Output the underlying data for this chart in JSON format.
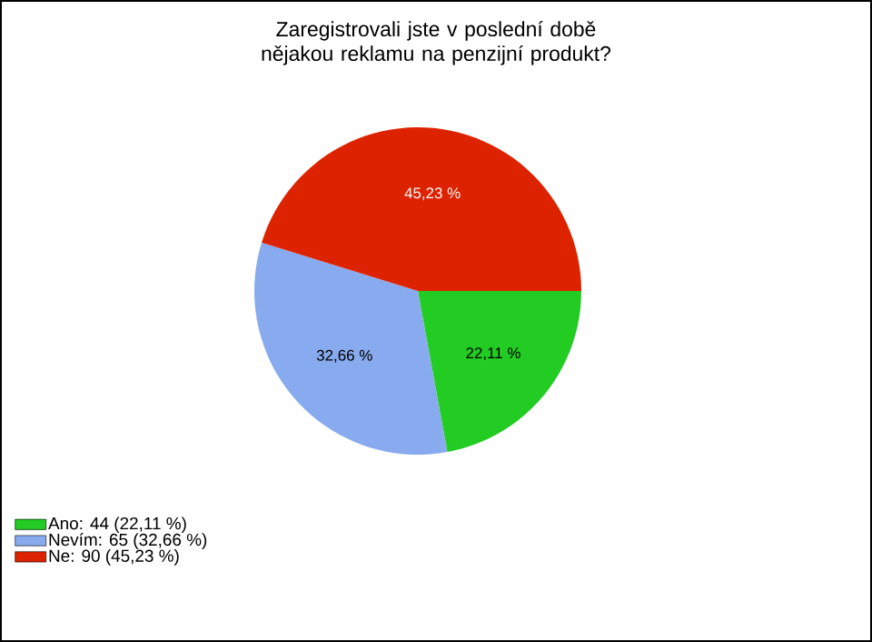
{
  "chart_data": {
    "type": "pie",
    "title": "Zaregistrovali jste v poslední době nějakou reklamu na penzijní produkt?",
    "categories": [
      "Ano: 44 (22,11 %)",
      "Nevím: 65 (32,66 %)",
      "Ne: 90 (45,23 %)"
    ],
    "values": [
      22.11,
      32.66,
      45.23
    ],
    "value_labels": [
      "22,11 %",
      "32,66 %",
      "45,23 %"
    ],
    "colors": [
      "#22cc22",
      "#88aaee",
      "#dd2200"
    ],
    "legend": "bottom left"
  }
}
